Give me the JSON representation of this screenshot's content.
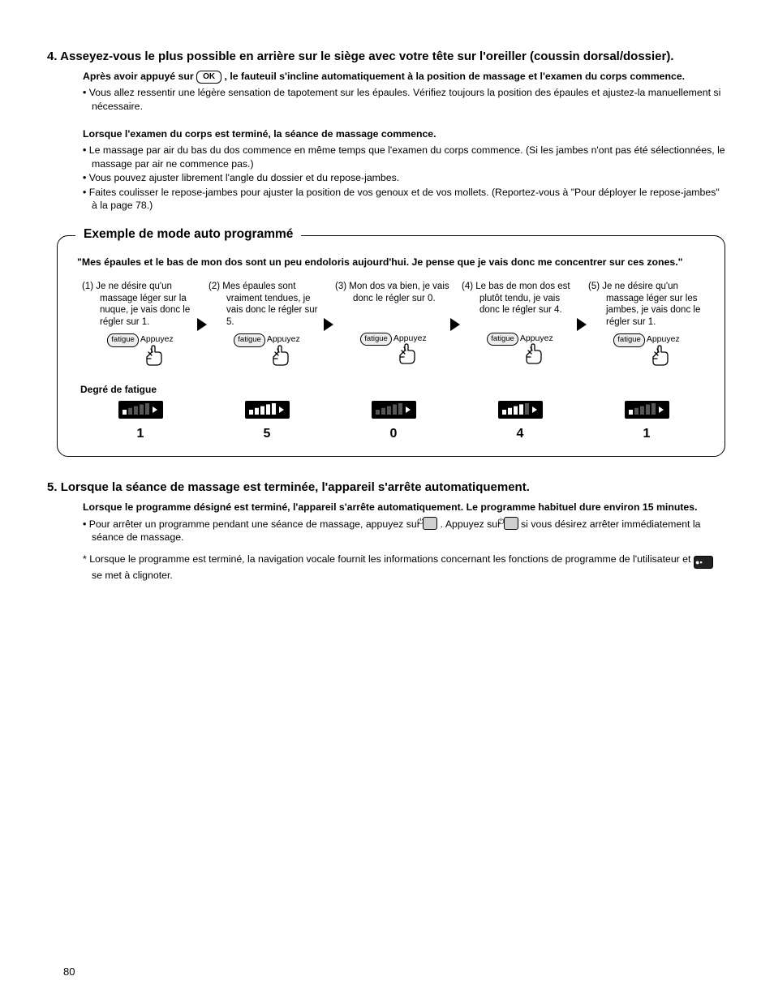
{
  "page_number": "80",
  "section4": {
    "heading_num": "4.",
    "heading": "Asseyez-vous le plus possible en arrière sur le siège avec votre tête sur l'oreiller (coussin dorsal/dossier).",
    "after_press_pre": "Après avoir appuyé sur ",
    "ok_label": "OK",
    "after_press_post": ", le fauteuil s'incline automatiquement à la position de massage et l'examen du corps commence.",
    "bullets_a": [
      "Vous allez ressentir une légère sensation de tapotement sur les épaules. Vérifiez toujours la position des épaules et ajustez-la manuellement si nécessaire."
    ],
    "sub2": "Lorsque l'examen du corps est terminé, la séance de massage commence.",
    "bullets_b": [
      "Le massage par air du bas du dos commence en même temps que l'examen du corps commence. (Si les jambes n'ont pas été sélectionnées, le massage par air ne commence pas.)",
      "Vous pouvez ajuster librement l'angle du dossier et du repose-jambes.",
      "Faites coulisser le repose-jambes pour ajuster la position de vos genoux et de vos mollets. (Reportez-vous à \"Pour déployer le repose-jambes\" à la page 78.)"
    ]
  },
  "example": {
    "title": "Exemple de mode auto programmé",
    "quote": "\"Mes épaules et le bas de mon dos sont un peu endoloris aujourd'hui. Je pense que je vais donc me concentrer sur ces zones.\"",
    "press_label": "Appuyez",
    "fatigue_button": "fatigue",
    "degree_label": "Degré de fatigue",
    "arrow_color": "#000000",
    "bar_bg": "#000000",
    "bar_on": "#ffffff",
    "bar_off": "#555555",
    "max_level": 5,
    "steps": [
      {
        "num": "(1)",
        "text": "Je ne désire qu'un massage léger sur la nuque, je vais donc le régler sur 1.",
        "level": 1,
        "level_label": "1"
      },
      {
        "num": "(2)",
        "text": "Mes épaules sont vraiment tendues, je vais donc le régler sur 5.",
        "level": 5,
        "level_label": "5"
      },
      {
        "num": "(3)",
        "text": "Mon dos va bien, je vais donc le régler sur 0.",
        "level": 0,
        "level_label": "0"
      },
      {
        "num": "(4)",
        "text": "Le bas de mon dos est plutôt tendu, je vais donc le régler sur 4.",
        "level": 4,
        "level_label": "4"
      },
      {
        "num": "(5)",
        "text": "Je ne désire qu'un massage léger sur les jambes, je vais donc le régler sur 1.",
        "level": 1,
        "level_label": "1"
      }
    ]
  },
  "section5": {
    "heading_num": "5.",
    "heading": "Lorsque la séance de massage est terminée, l'appareil s'arrête automatiquement.",
    "sub": "Lorsque le programme désigné est terminé, l'appareil s'arrête automatiquement. Le programme habituel dure environ 15 minutes.",
    "bullet_pre": "Pour arrêter un programme pendant une séance de massage, appuyez sur ",
    "bullet_mid": ". Appuyez sur ",
    "bullet_post": " si vous désirez arrêter immédiatement la séance de massage.",
    "star_pre": "Lorsque le programme est terminé, la navigation vocale fournit les informations concernant les fonctions de programme de l'utilisateur et ",
    "star_post": " se met à clignoter.",
    "prog_icon_text": "●▪"
  }
}
